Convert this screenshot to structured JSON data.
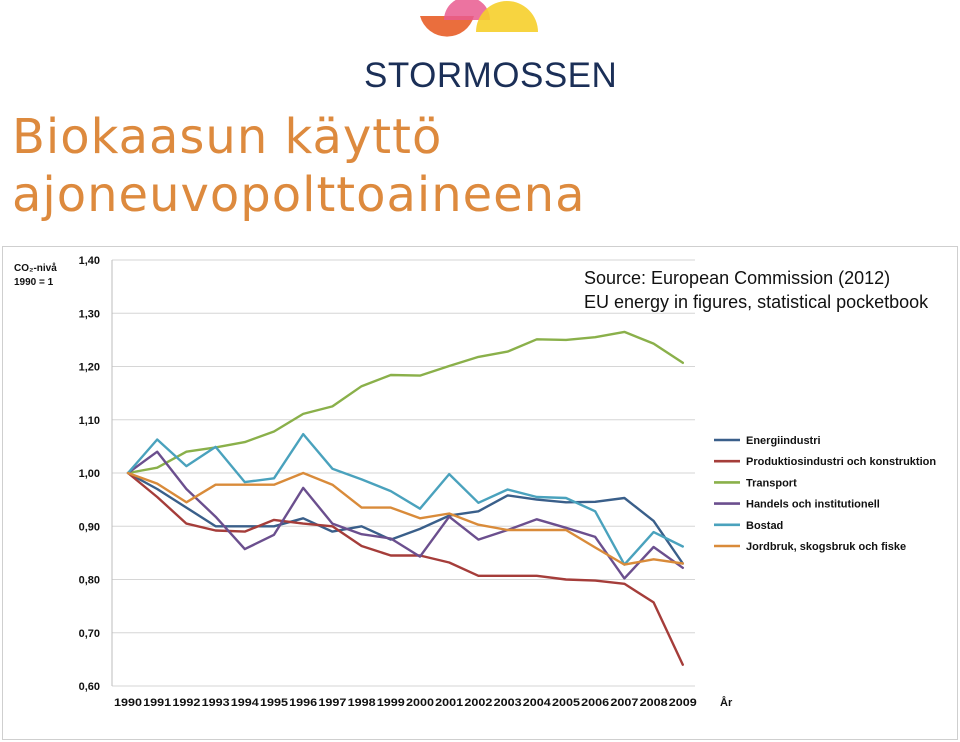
{
  "logo": {
    "text": "STORMOSSEN",
    "colors": {
      "orange": "#e8622d",
      "pink": "#e95a8f",
      "yellow": "#f6cf2b",
      "text": "#1b2f57"
    }
  },
  "title": {
    "line1": "Biokaasun käyttö",
    "line2": "ajoneuvopolttoaineena"
  },
  "source": {
    "line1": "Source: European Commission (2012)",
    "line2": "EU energy in figures, statistical pocketbook"
  },
  "chart_data": {
    "type": "line",
    "ylabel_lines": [
      "CO₂-nivå",
      "1990 = 1"
    ],
    "xlabel": "År",
    "ylim": [
      0.6,
      1.4
    ],
    "yticks": [
      "0,60",
      "0,70",
      "0,80",
      "0,90",
      "1,00",
      "1,10",
      "1,20",
      "1,30",
      "1,40"
    ],
    "x": [
      "1990",
      "1991",
      "1992",
      "1993",
      "1994",
      "1995",
      "1996",
      "1997",
      "1998",
      "1999",
      "2000",
      "2001",
      "2002",
      "2003",
      "2004",
      "2005",
      "2006",
      "2007",
      "2008",
      "2009"
    ],
    "grid": true,
    "legend_position": "right",
    "series": [
      {
        "name": "Energiindustri",
        "color": "#3a5f8a",
        "values": [
          1.0,
          0.97,
          0.935,
          0.9,
          0.9,
          0.9,
          0.915,
          0.89,
          0.9,
          0.875,
          0.895,
          0.92,
          0.928,
          0.958,
          0.95,
          0.945,
          0.946,
          0.953,
          0.91,
          0.83
        ]
      },
      {
        "name": "Produktiosindustri och konstruktion",
        "color": "#a53d3a",
        "values": [
          1.0,
          0.955,
          0.905,
          0.892,
          0.89,
          0.912,
          0.905,
          0.9,
          0.863,
          0.845,
          0.845,
          0.832,
          0.807,
          0.807,
          0.807,
          0.8,
          0.798,
          0.792,
          0.757,
          0.64
        ]
      },
      {
        "name": "Transport",
        "color": "#8ab04a",
        "values": [
          1.0,
          1.01,
          1.04,
          1.048,
          1.058,
          1.078,
          1.111,
          1.125,
          1.163,
          1.184,
          1.183,
          1.201,
          1.218,
          1.228,
          1.251,
          1.25,
          1.255,
          1.265,
          1.243,
          1.207
        ]
      },
      {
        "name": "Handels och institutionell",
        "color": "#6b4f8e",
        "values": [
          1.0,
          1.04,
          0.97,
          0.918,
          0.857,
          0.884,
          0.972,
          0.905,
          0.885,
          0.877,
          0.843,
          0.918,
          0.875,
          0.893,
          0.913,
          0.897,
          0.88,
          0.802,
          0.861,
          0.822
        ]
      },
      {
        "name": "Bostad",
        "color": "#4aa2bd",
        "values": [
          1.0,
          1.063,
          1.013,
          1.049,
          0.983,
          0.99,
          1.073,
          1.008,
          0.988,
          0.966,
          0.933,
          0.998,
          0.944,
          0.969,
          0.955,
          0.953,
          0.928,
          0.828,
          0.889,
          0.862
        ]
      },
      {
        "name": "Jordbruk, skogsbruk och fiske",
        "color": "#d98b3a",
        "values": [
          1.0,
          0.98,
          0.945,
          0.978,
          0.978,
          0.978,
          1.0,
          0.978,
          0.935,
          0.935,
          0.915,
          0.924,
          0.903,
          0.893,
          0.893,
          0.893,
          0.86,
          0.828,
          0.838,
          0.83
        ]
      }
    ]
  }
}
